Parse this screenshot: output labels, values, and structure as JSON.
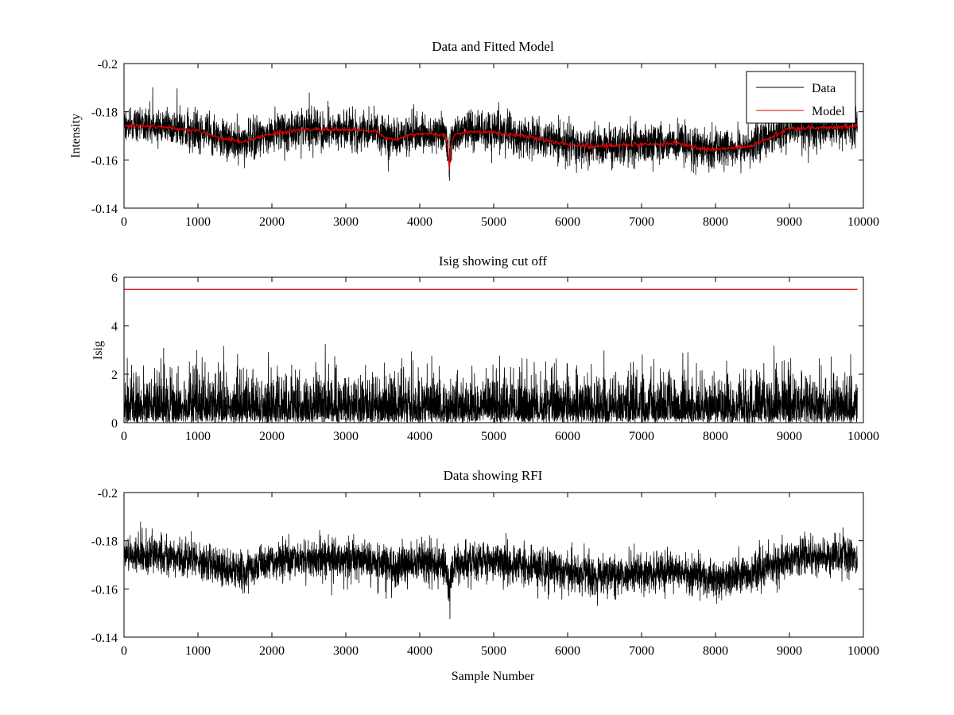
{
  "colors": {
    "data": "#000000",
    "model": "#e00000",
    "cutoff": "#e00000",
    "axes": "#000000",
    "background": "#ffffff"
  },
  "chart_data": [
    {
      "type": "line",
      "title": "Data and Fitted Model",
      "xlabel": "",
      "ylabel": "Intensity",
      "xlim": [
        0,
        10000
      ],
      "ylim": [
        -0.2,
        -0.14
      ],
      "y_reversed": true,
      "xticks": [
        0,
        1000,
        2000,
        3000,
        4000,
        5000,
        6000,
        7000,
        8000,
        9000,
        10000
      ],
      "xtick_labels": [
        "0",
        "1000",
        "2000",
        "3000",
        "4000",
        "5000",
        "6000",
        "7000",
        "8000",
        "9000",
        "10000"
      ],
      "yticks": [
        -0.2,
        -0.18,
        -0.16,
        -0.14
      ],
      "ytick_labels": [
        "-0.2",
        "-0.18",
        "-0.16",
        "-0.14"
      ],
      "grid": false,
      "legend": {
        "placement": "top-right",
        "entries": [
          "Data",
          "Model"
        ]
      },
      "series": [
        {
          "name": "Data",
          "kind": "noisy",
          "n_points": 9920,
          "noise_std": 0.004,
          "baseline_x": [
            0,
            400,
            1000,
            1300,
            1600,
            2000,
            2400,
            3000,
            3400,
            3550,
            3700,
            3850,
            4000,
            4350,
            4380,
            4400,
            4420,
            4460,
            4600,
            5000,
            5500,
            6000,
            6300,
            7000,
            7500,
            7900,
            8500,
            9000,
            9920
          ],
          "baseline_y": [
            -0.1745,
            -0.174,
            -0.172,
            -0.169,
            -0.1675,
            -0.171,
            -0.1725,
            -0.1725,
            -0.172,
            -0.169,
            -0.1685,
            -0.1705,
            -0.171,
            -0.1705,
            -0.165,
            -0.157,
            -0.165,
            -0.17,
            -0.1715,
            -0.1715,
            -0.1695,
            -0.1665,
            -0.1655,
            -0.1665,
            -0.167,
            -0.164,
            -0.166,
            -0.173,
            -0.174
          ]
        },
        {
          "name": "Model",
          "kind": "smooth",
          "x": [
            0,
            400,
            1000,
            1300,
            1600,
            2000,
            2400,
            3000,
            3400,
            3550,
            3700,
            3850,
            4000,
            4350,
            4380,
            4400,
            4420,
            4460,
            4600,
            5000,
            5500,
            6000,
            6300,
            7000,
            7500,
            7900,
            8500,
            9000,
            9920
          ],
          "y": [
            -0.1745,
            -0.174,
            -0.172,
            -0.169,
            -0.1675,
            -0.171,
            -0.1725,
            -0.1725,
            -0.172,
            -0.169,
            -0.1685,
            -0.1705,
            -0.171,
            -0.1705,
            -0.165,
            -0.157,
            -0.165,
            -0.17,
            -0.1715,
            -0.1715,
            -0.1695,
            -0.1665,
            -0.1655,
            -0.1665,
            -0.167,
            -0.164,
            -0.166,
            -0.173,
            -0.174
          ]
        }
      ]
    },
    {
      "type": "line",
      "title": "Isig showing cut off",
      "xlabel": "",
      "ylabel": "Isig",
      "xlim": [
        0,
        10000
      ],
      "ylim": [
        0,
        6
      ],
      "y_reversed": false,
      "xticks": [
        0,
        1000,
        2000,
        3000,
        4000,
        5000,
        6000,
        7000,
        8000,
        9000,
        10000
      ],
      "xtick_labels": [
        "0",
        "1000",
        "2000",
        "3000",
        "4000",
        "5000",
        "6000",
        "7000",
        "8000",
        "9000",
        "10000"
      ],
      "yticks": [
        0,
        2,
        4,
        6
      ],
      "ytick_labels": [
        "0",
        "2",
        "4",
        "6"
      ],
      "grid": false,
      "series": [
        {
          "kind": "abs_noise",
          "n_points": 9920,
          "noise_std": 0.9,
          "cap": 4.1
        },
        {
          "kind": "hline",
          "y": 5.5
        }
      ]
    },
    {
      "type": "line",
      "title": "Data showing RFI",
      "xlabel": "Sample Number",
      "ylabel": "",
      "xlim": [
        0,
        10000
      ],
      "ylim": [
        -0.2,
        -0.14
      ],
      "y_reversed": true,
      "xticks": [
        0,
        1000,
        2000,
        3000,
        4000,
        5000,
        6000,
        7000,
        8000,
        9000,
        10000
      ],
      "xtick_labels": [
        "0",
        "1000",
        "2000",
        "3000",
        "4000",
        "5000",
        "6000",
        "7000",
        "8000",
        "9000",
        "10000"
      ],
      "yticks": [
        -0.2,
        -0.18,
        -0.16,
        -0.14
      ],
      "ytick_labels": [
        "-0.2",
        "-0.18",
        "-0.16",
        "-0.14"
      ],
      "grid": false,
      "series": [
        {
          "kind": "noisy",
          "n_points": 9920,
          "noise_std": 0.004,
          "baseline_x": [
            0,
            400,
            1000,
            1300,
            1600,
            2000,
            2400,
            3000,
            3400,
            3550,
            3700,
            3850,
            4000,
            4350,
            4380,
            4400,
            4420,
            4460,
            4600,
            5000,
            5500,
            6000,
            6300,
            7000,
            7500,
            7900,
            8500,
            9000,
            9920
          ],
          "baseline_y": [
            -0.1745,
            -0.174,
            -0.172,
            -0.169,
            -0.1675,
            -0.171,
            -0.1725,
            -0.1725,
            -0.172,
            -0.169,
            -0.1685,
            -0.1705,
            -0.171,
            -0.1705,
            -0.165,
            -0.157,
            -0.165,
            -0.17,
            -0.1715,
            -0.1715,
            -0.1695,
            -0.1665,
            -0.1655,
            -0.1665,
            -0.167,
            -0.164,
            -0.166,
            -0.173,
            -0.174
          ]
        }
      ]
    }
  ]
}
